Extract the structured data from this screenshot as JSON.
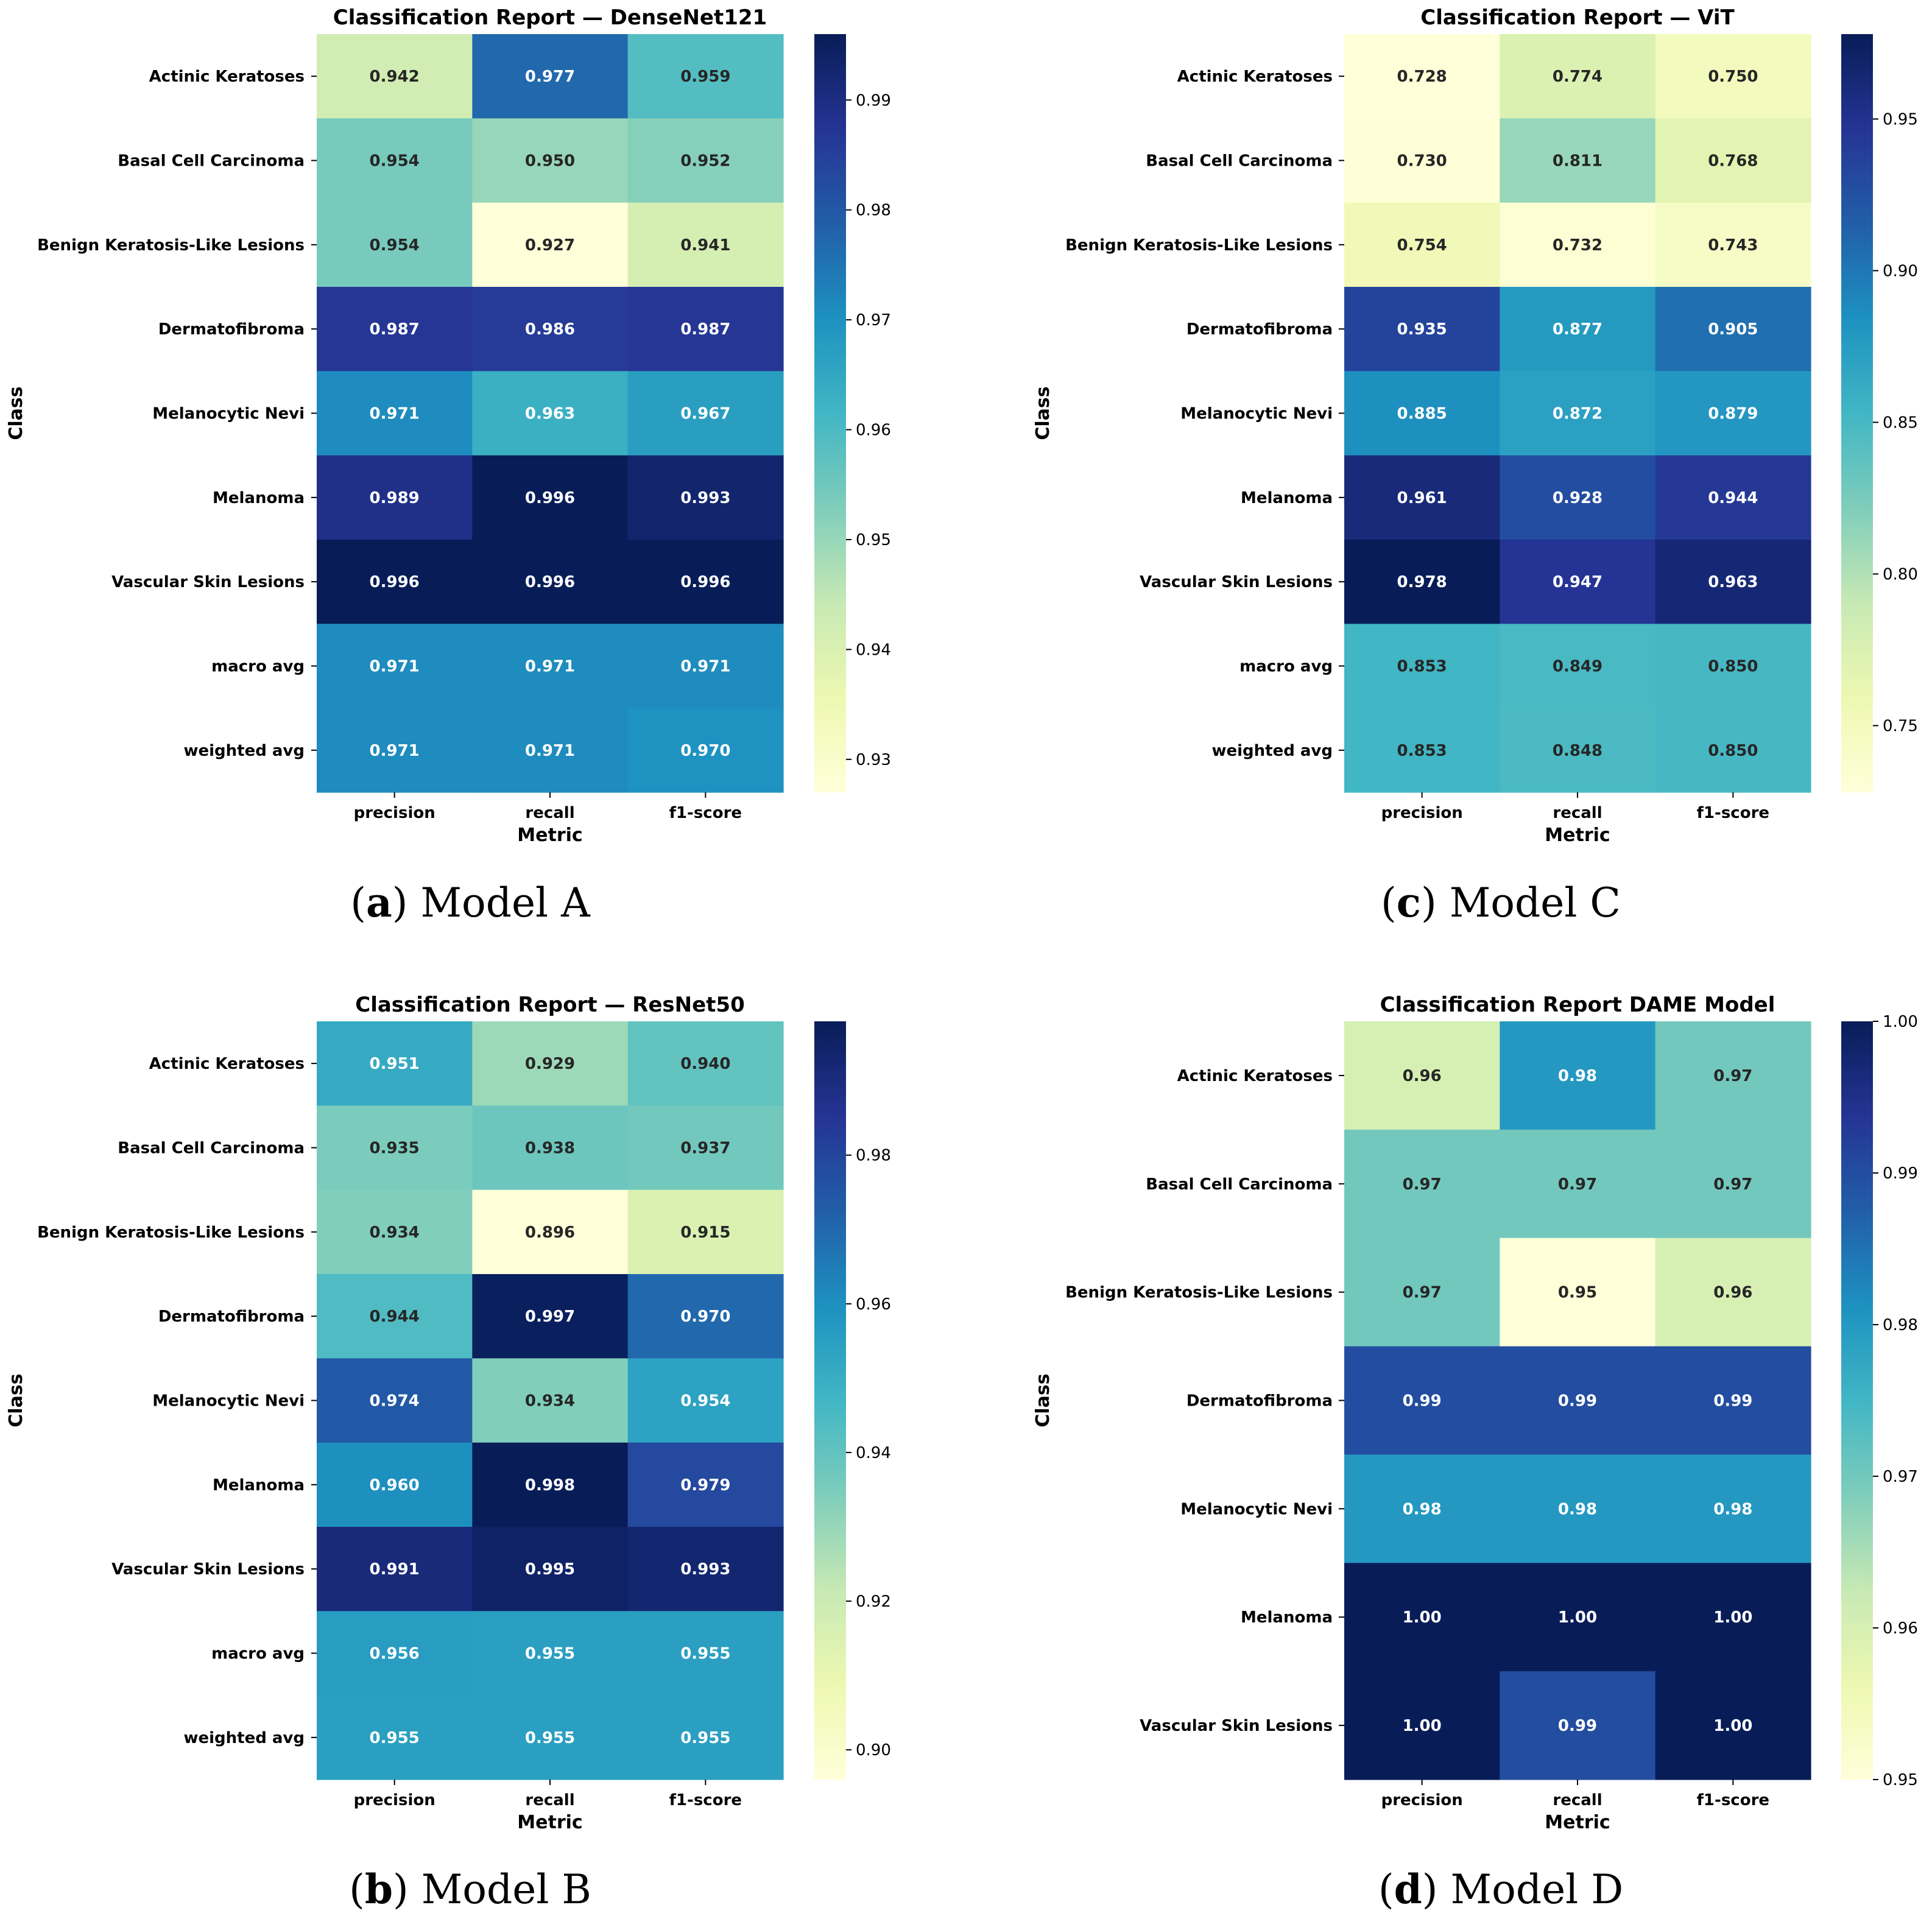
{
  "figure": {
    "captions": [
      {
        "letter": "a",
        "text": "Model A"
      },
      {
        "letter": "b",
        "text": "Model B"
      },
      {
        "letter": "c",
        "text": "Model C"
      },
      {
        "letter": "d",
        "text": "Model D"
      }
    ]
  },
  "colormap": {
    "name": "YlGnBu",
    "stops": [
      "#ffffd9",
      "#edf8b1",
      "#c7e9b4",
      "#7fcdbb",
      "#41b6c4",
      "#1d91c0",
      "#225ea8",
      "#253494",
      "#081d58"
    ],
    "light_text": "#ffffff",
    "dark_text": "#262626"
  },
  "chart_data": [
    {
      "panel": "a",
      "type": "heatmap",
      "title": "Classification Report — DenseNet121",
      "xlabel": "Metric",
      "ylabel": "Class",
      "columns": [
        "precision",
        "recall",
        "f1-score"
      ],
      "rows": [
        "Actinic Keratoses",
        "Basal Cell Carcinoma",
        "Benign Keratosis-Like Lesions",
        "Dermatofibroma",
        "Melanocytic Nevi",
        "Melanoma",
        "Vascular Skin Lesions",
        "macro avg",
        "weighted avg"
      ],
      "values": [
        [
          0.942,
          0.977,
          0.959
        ],
        [
          0.954,
          0.95,
          0.952
        ],
        [
          0.954,
          0.927,
          0.941
        ],
        [
          0.987,
          0.986,
          0.987
        ],
        [
          0.971,
          0.963,
          0.967
        ],
        [
          0.989,
          0.996,
          0.993
        ],
        [
          0.996,
          0.996,
          0.996
        ],
        [
          0.971,
          0.971,
          0.971
        ],
        [
          0.971,
          0.971,
          0.97
        ]
      ],
      "value_labels": [
        [
          "0.942",
          "0.977",
          "0.959"
        ],
        [
          "0.954",
          "0.950",
          "0.952"
        ],
        [
          "0.954",
          "0.927",
          "0.941"
        ],
        [
          "0.987",
          "0.986",
          "0.987"
        ],
        [
          "0.971",
          "0.963",
          "0.967"
        ],
        [
          "0.989",
          "0.996",
          "0.993"
        ],
        [
          "0.996",
          "0.996",
          "0.996"
        ],
        [
          "0.971",
          "0.971",
          "0.971"
        ],
        [
          "0.971",
          "0.971",
          "0.970"
        ]
      ],
      "color_range": [
        0.927,
        0.996
      ],
      "colorbar_ticks": [
        0.93,
        0.94,
        0.95,
        0.96,
        0.97,
        0.98,
        0.99
      ],
      "colorbar_tick_labels": [
        "0.93",
        "0.94",
        "0.95",
        "0.96",
        "0.97",
        "0.98",
        "0.99"
      ]
    },
    {
      "panel": "b",
      "type": "heatmap",
      "title": "Classification Report — ResNet50",
      "xlabel": "Metric",
      "ylabel": "Class",
      "columns": [
        "precision",
        "recall",
        "f1-score"
      ],
      "rows": [
        "Actinic Keratoses",
        "Basal Cell Carcinoma",
        "Benign Keratosis-Like Lesions",
        "Dermatofibroma",
        "Melanocytic Nevi",
        "Melanoma",
        "Vascular Skin Lesions",
        "macro avg",
        "weighted avg"
      ],
      "values": [
        [
          0.951,
          0.929,
          0.94
        ],
        [
          0.935,
          0.938,
          0.937
        ],
        [
          0.934,
          0.896,
          0.915
        ],
        [
          0.944,
          0.997,
          0.97
        ],
        [
          0.974,
          0.934,
          0.954
        ],
        [
          0.96,
          0.998,
          0.979
        ],
        [
          0.991,
          0.995,
          0.993
        ],
        [
          0.956,
          0.955,
          0.955
        ],
        [
          0.955,
          0.955,
          0.955
        ]
      ],
      "value_labels": [
        [
          "0.951",
          "0.929",
          "0.940"
        ],
        [
          "0.935",
          "0.938",
          "0.937"
        ],
        [
          "0.934",
          "0.896",
          "0.915"
        ],
        [
          "0.944",
          "0.997",
          "0.970"
        ],
        [
          "0.974",
          "0.934",
          "0.954"
        ],
        [
          "0.960",
          "0.998",
          "0.979"
        ],
        [
          "0.991",
          "0.995",
          "0.993"
        ],
        [
          "0.956",
          "0.955",
          "0.955"
        ],
        [
          "0.955",
          "0.955",
          "0.955"
        ]
      ],
      "color_range": [
        0.896,
        0.998
      ],
      "colorbar_ticks": [
        0.9,
        0.92,
        0.94,
        0.96,
        0.98
      ],
      "colorbar_tick_labels": [
        "0.90",
        "0.92",
        "0.94",
        "0.96",
        "0.98"
      ]
    },
    {
      "panel": "c",
      "type": "heatmap",
      "title": "Classification Report — ViT",
      "xlabel": "Metric",
      "ylabel": "Class",
      "columns": [
        "precision",
        "recall",
        "f1-score"
      ],
      "rows": [
        "Actinic Keratoses",
        "Basal Cell Carcinoma",
        "Benign Keratosis-Like Lesions",
        "Dermatofibroma",
        "Melanocytic Nevi",
        "Melanoma",
        "Vascular Skin Lesions",
        "macro avg",
        "weighted avg"
      ],
      "values": [
        [
          0.728,
          0.774,
          0.75
        ],
        [
          0.73,
          0.811,
          0.768
        ],
        [
          0.754,
          0.732,
          0.743
        ],
        [
          0.935,
          0.877,
          0.905
        ],
        [
          0.885,
          0.872,
          0.879
        ],
        [
          0.961,
          0.928,
          0.944
        ],
        [
          0.978,
          0.947,
          0.963
        ],
        [
          0.853,
          0.849,
          0.85
        ],
        [
          0.853,
          0.848,
          0.85
        ]
      ],
      "value_labels": [
        [
          "0.728",
          "0.774",
          "0.750"
        ],
        [
          "0.730",
          "0.811",
          "0.768"
        ],
        [
          "0.754",
          "0.732",
          "0.743"
        ],
        [
          "0.935",
          "0.877",
          "0.905"
        ],
        [
          "0.885",
          "0.872",
          "0.879"
        ],
        [
          "0.961",
          "0.928",
          "0.944"
        ],
        [
          "0.978",
          "0.947",
          "0.963"
        ],
        [
          "0.853",
          "0.849",
          "0.850"
        ],
        [
          "0.853",
          "0.848",
          "0.850"
        ]
      ],
      "color_range": [
        0.728,
        0.978
      ],
      "colorbar_ticks": [
        0.75,
        0.8,
        0.85,
        0.9,
        0.95
      ],
      "colorbar_tick_labels": [
        "0.75",
        "0.80",
        "0.85",
        "0.90",
        "0.95"
      ]
    },
    {
      "panel": "d",
      "type": "heatmap",
      "title": "Classification Report DAME Model",
      "xlabel": "Metric",
      "ylabel": "Class",
      "columns": [
        "precision",
        "recall",
        "f1-score"
      ],
      "rows": [
        "Actinic Keratoses",
        "Basal Cell Carcinoma",
        "Benign Keratosis-Like Lesions",
        "Dermatofibroma",
        "Melanocytic Nevi",
        "Melanoma",
        "Vascular Skin Lesions"
      ],
      "values": [
        [
          0.96,
          0.98,
          0.97
        ],
        [
          0.97,
          0.97,
          0.97
        ],
        [
          0.97,
          0.95,
          0.96
        ],
        [
          0.99,
          0.99,
          0.99
        ],
        [
          0.98,
          0.98,
          0.98
        ],
        [
          1.0,
          1.0,
          1.0
        ],
        [
          1.0,
          0.99,
          1.0
        ]
      ],
      "value_labels": [
        [
          "0.96",
          "0.98",
          "0.97"
        ],
        [
          "0.97",
          "0.97",
          "0.97"
        ],
        [
          "0.97",
          "0.95",
          "0.96"
        ],
        [
          "0.99",
          "0.99",
          "0.99"
        ],
        [
          "0.98",
          "0.98",
          "0.98"
        ],
        [
          "1.00",
          "1.00",
          "1.00"
        ],
        [
          "1.00",
          "0.99",
          "1.00"
        ]
      ],
      "color_range": [
        0.95,
        1.0
      ],
      "colorbar_ticks": [
        0.95,
        0.96,
        0.97,
        0.98,
        0.99,
        1.0
      ],
      "colorbar_tick_labels": [
        "0.95",
        "0.96",
        "0.97",
        "0.98",
        "0.99",
        "1.00"
      ]
    }
  ]
}
